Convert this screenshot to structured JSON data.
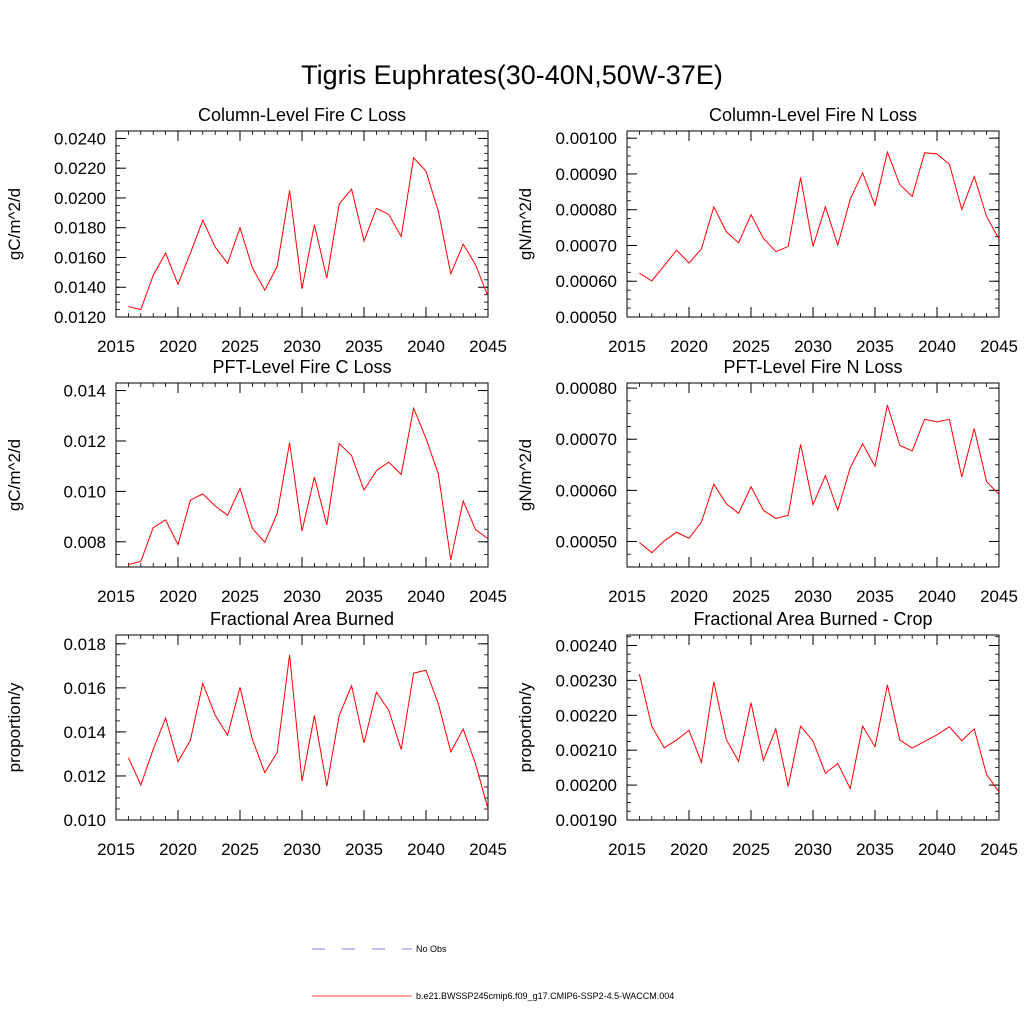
{
  "title": "Tigris Euphrates(30-40N,50W-37E)",
  "legend": {
    "position": "bottom-center",
    "items": [
      {
        "label": "No Obs",
        "color": "#4b5bd6",
        "style": "dashed"
      },
      {
        "label": "b.e21.BWSSP245cmip6.f09_g17.CMIP6-SSP2-4.5-WACCM.004",
        "color": "#ff0000",
        "style": "solid"
      }
    ]
  },
  "chart_data": [
    {
      "type": "line",
      "title": "Column-Level Fire C Loss",
      "ylabel": "gC/m^2/d",
      "xlim": [
        2015,
        2045
      ],
      "ylim": [
        0.012,
        0.0245
      ],
      "xticks": [
        2015,
        2020,
        2025,
        2030,
        2035,
        2040,
        2045
      ],
      "yticks": [
        "0.0120",
        "0.0140",
        "0.0160",
        "0.0180",
        "0.0200",
        "0.0220",
        "0.0240"
      ],
      "series": [
        {
          "color": "#ff0000",
          "x": [
            2016,
            2017,
            2018,
            2019,
            2020,
            2021,
            2022,
            2023,
            2024,
            2025,
            2026,
            2027,
            2028,
            2029,
            2030,
            2031,
            2032,
            2033,
            2034,
            2035,
            2036,
            2037,
            2038,
            2039,
            2040,
            2041,
            2042,
            2043,
            2044,
            2045
          ],
          "y": [
            0.0127,
            0.0125,
            0.0148,
            0.0163,
            0.0142,
            0.0163,
            0.0185,
            0.0167,
            0.0156,
            0.018,
            0.0153,
            0.0138,
            0.0154,
            0.0205,
            0.0139,
            0.0182,
            0.0146,
            0.0196,
            0.0206,
            0.0171,
            0.0193,
            0.0189,
            0.0174,
            0.0227,
            0.0218,
            0.0191,
            0.0149,
            0.0169,
            0.0155,
            0.0134
          ]
        }
      ]
    },
    {
      "type": "line",
      "title": "Column-Level Fire N Loss",
      "ylabel": "gN/m^2/d",
      "xlim": [
        2015,
        2045
      ],
      "ylim": [
        0.0005,
        0.00102
      ],
      "xticks": [
        2015,
        2020,
        2025,
        2030,
        2035,
        2040,
        2045
      ],
      "yticks": [
        "0.00050",
        "0.00060",
        "0.00070",
        "0.00080",
        "0.00090",
        "0.00100"
      ],
      "series": [
        {
          "color": "#ff0000",
          "x": [
            2016,
            2017,
            2018,
            2019,
            2020,
            2021,
            2022,
            2023,
            2024,
            2025,
            2026,
            2027,
            2028,
            2029,
            2030,
            2031,
            2032,
            2033,
            2034,
            2035,
            2036,
            2037,
            2038,
            2039,
            2040,
            2041,
            2042,
            2043,
            2044,
            2045
          ],
          "y": [
            0.000622,
            0.000601,
            0.000643,
            0.000687,
            0.000651,
            0.00069,
            0.000808,
            0.000739,
            0.000707,
            0.000786,
            0.00072,
            0.000683,
            0.000697,
            0.00089,
            0.000697,
            0.000808,
            0.000701,
            0.000829,
            0.000903,
            0.000812,
            0.000961,
            0.00087,
            0.000837,
            0.000959,
            0.000956,
            0.000927,
            0.000801,
            0.000893,
            0.000781,
            0.000718
          ]
        }
      ]
    },
    {
      "type": "line",
      "title": "PFT-Level Fire C Loss",
      "ylabel": "gC/m^2/d",
      "xlim": [
        2015,
        2045
      ],
      "ylim": [
        0.007,
        0.0143
      ],
      "xticks": [
        2015,
        2020,
        2025,
        2030,
        2035,
        2040,
        2045
      ],
      "yticks": [
        "0.008",
        "0.010",
        "0.012",
        "0.014"
      ],
      "series": [
        {
          "color": "#ff0000",
          "x": [
            2016,
            2017,
            2018,
            2019,
            2020,
            2021,
            2022,
            2023,
            2024,
            2025,
            2026,
            2027,
            2028,
            2029,
            2030,
            2031,
            2032,
            2033,
            2034,
            2035,
            2036,
            2037,
            2038,
            2039,
            2040,
            2041,
            2042,
            2043,
            2044,
            2045
          ],
          "y": [
            0.0071,
            0.00722,
            0.00856,
            0.00887,
            0.00789,
            0.00965,
            0.0099,
            0.00942,
            0.00905,
            0.01012,
            0.00853,
            0.00798,
            0.00912,
            0.01193,
            0.00843,
            0.01057,
            0.00867,
            0.0119,
            0.01142,
            0.01005,
            0.01082,
            0.01116,
            0.01067,
            0.0133,
            0.0121,
            0.01068,
            0.00728,
            0.00962,
            0.00848,
            0.00812
          ]
        }
      ]
    },
    {
      "type": "line",
      "title": "PFT-Level Fire N Loss",
      "ylabel": "gN/m^2/d",
      "xlim": [
        2015,
        2045
      ],
      "ylim": [
        0.00045,
        0.00081
      ],
      "xticks": [
        2015,
        2020,
        2025,
        2030,
        2035,
        2040,
        2045
      ],
      "yticks": [
        "0.00050",
        "0.00060",
        "0.00070",
        "0.00080"
      ],
      "series": [
        {
          "color": "#ff0000",
          "x": [
            2016,
            2017,
            2018,
            2019,
            2020,
            2021,
            2022,
            2023,
            2024,
            2025,
            2026,
            2027,
            2028,
            2029,
            2030,
            2031,
            2032,
            2033,
            2034,
            2035,
            2036,
            2037,
            2038,
            2039,
            2040,
            2041,
            2042,
            2043,
            2044,
            2045
          ],
          "y": [
            0.000498,
            0.000478,
            0.000501,
            0.000518,
            0.000506,
            0.000538,
            0.000612,
            0.000574,
            0.000555,
            0.000607,
            0.000561,
            0.000545,
            0.000551,
            0.00069,
            0.000572,
            0.000629,
            0.000561,
            0.000644,
            0.000691,
            0.000647,
            0.000767,
            0.000688,
            0.000677,
            0.000739,
            0.000734,
            0.000739,
            0.000626,
            0.000721,
            0.000617,
            0.000592
          ]
        }
      ]
    },
    {
      "type": "line",
      "title": "Fractional Area Burned",
      "ylabel": "proportion/y",
      "xlim": [
        2015,
        2045
      ],
      "ylim": [
        0.01,
        0.0184
      ],
      "xticks": [
        2015,
        2020,
        2025,
        2030,
        2035,
        2040,
        2045
      ],
      "yticks": [
        "0.010",
        "0.012",
        "0.014",
        "0.016",
        "0.018"
      ],
      "series": [
        {
          "color": "#ff0000",
          "x": [
            2016,
            2017,
            2018,
            2019,
            2020,
            2021,
            2022,
            2023,
            2024,
            2025,
            2026,
            2027,
            2028,
            2029,
            2030,
            2031,
            2032,
            2033,
            2034,
            2035,
            2036,
            2037,
            2038,
            2039,
            2040,
            2041,
            2042,
            2043,
            2044,
            2045
          ],
          "y": [
            0.01283,
            0.01159,
            0.01321,
            0.01463,
            0.01265,
            0.01362,
            0.0162,
            0.01476,
            0.01385,
            0.01602,
            0.01366,
            0.01215,
            0.01307,
            0.0175,
            0.01176,
            0.01474,
            0.01154,
            0.01475,
            0.0161,
            0.0135,
            0.0158,
            0.01498,
            0.0132,
            0.01667,
            0.0168,
            0.01526,
            0.0131,
            0.01413,
            0.01254,
            0.01051
          ]
        }
      ]
    },
    {
      "type": "line",
      "title": "Fractional Area Burned - Crop",
      "ylabel": "proportion/y",
      "xlim": [
        2015,
        2045
      ],
      "ylim": [
        0.0019,
        0.00243
      ],
      "xticks": [
        2015,
        2020,
        2025,
        2030,
        2035,
        2040,
        2045
      ],
      "yticks": [
        "0.00190",
        "0.00200",
        "0.00210",
        "0.00220",
        "0.00230",
        "0.00240"
      ],
      "series": [
        {
          "color": "#ff0000",
          "x": [
            2016,
            2017,
            2018,
            2019,
            2020,
            2021,
            2022,
            2023,
            2024,
            2025,
            2026,
            2027,
            2028,
            2029,
            2030,
            2031,
            2032,
            2033,
            2034,
            2035,
            2036,
            2037,
            2038,
            2039,
            2040,
            2041,
            2042,
            2043,
            2044,
            2045
          ],
          "y": [
            0.002318,
            0.002168,
            0.002107,
            0.002129,
            0.002157,
            0.002065,
            0.002296,
            0.002131,
            0.002068,
            0.002236,
            0.002071,
            0.002161,
            0.001996,
            0.002169,
            0.002126,
            0.002034,
            0.002062,
            0.00199,
            0.002169,
            0.00211,
            0.002287,
            0.002129,
            0.002106,
            0.002125,
            0.002144,
            0.002167,
            0.002127,
            0.002161,
            0.00203,
            0.001981
          ]
        }
      ]
    }
  ]
}
